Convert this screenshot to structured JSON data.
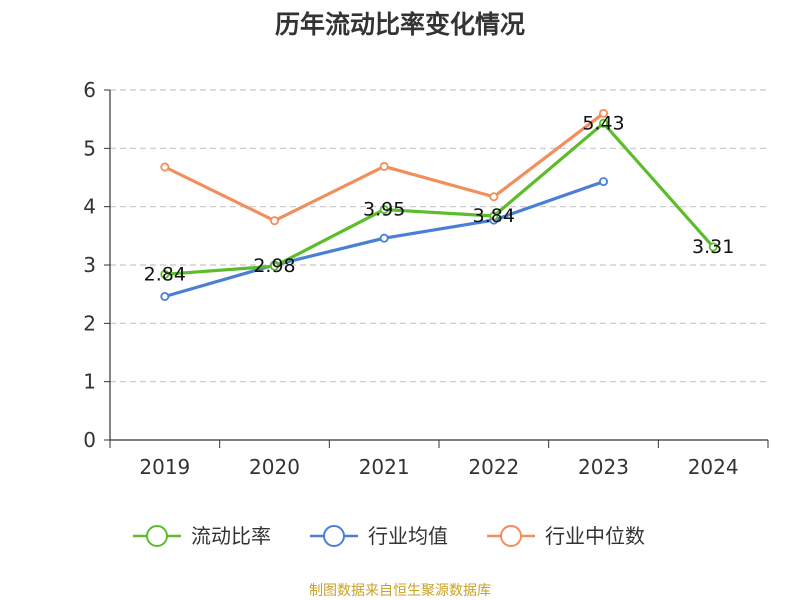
{
  "chart_data": {
    "type": "line",
    "title": "历年流动比率变化情况",
    "categories": [
      "2019",
      "2020",
      "2021",
      "2022",
      "2023",
      "2024"
    ],
    "ylim": [
      0,
      6
    ],
    "yticks": [
      0,
      1,
      2,
      3,
      4,
      5,
      6
    ],
    "grid": true,
    "legend_position": "bottom",
    "series": [
      {
        "name": "流动比率",
        "color": "#5cbd2b",
        "values": [
          2.84,
          2.98,
          3.95,
          3.84,
          5.43,
          3.31
        ],
        "labels": [
          "2.84",
          "2.98",
          "3.95",
          "3.84",
          "5.43",
          "3.31"
        ]
      },
      {
        "name": "行业均值",
        "color": "#4a7fd6",
        "values": [
          2.46,
          3.0,
          3.46,
          3.77,
          4.43,
          null
        ]
      },
      {
        "name": "行业中位数",
        "color": "#f28e5b",
        "values": [
          4.68,
          3.76,
          4.69,
          4.17,
          5.6,
          null
        ]
      }
    ]
  },
  "source_text": "制图数据来自恒生聚源数据库"
}
